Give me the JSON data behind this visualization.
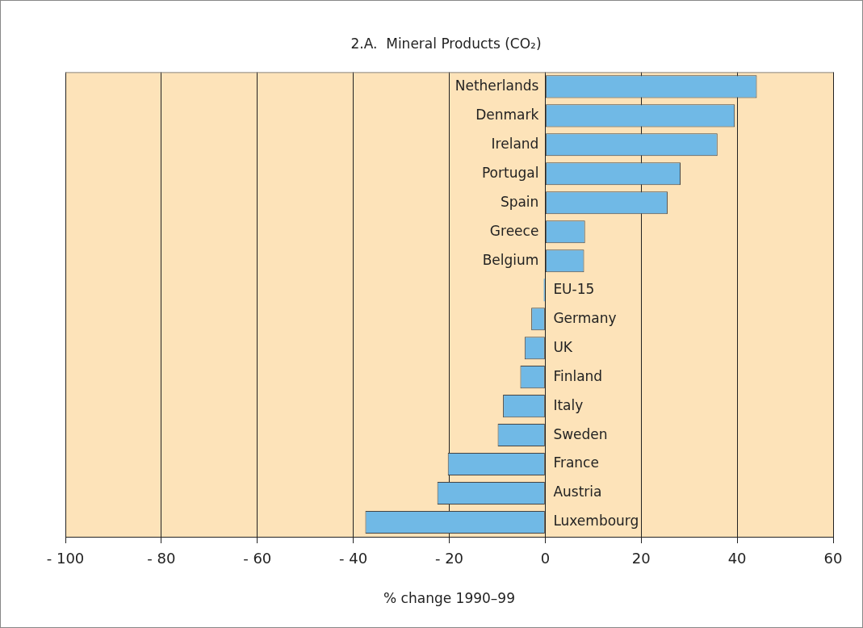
{
  "chart_data": {
    "type": "bar",
    "orientation": "horizontal",
    "title": "2.A.  Mineral Products (CO₂)",
    "xlabel": "% change 1990–99",
    "categories": [
      "Netherlands",
      "Denmark",
      "Ireland",
      "Portugal",
      "Spain",
      "Greece",
      "Belgium",
      "EU-15",
      "Germany",
      "UK",
      "Finland",
      "Italy",
      "Sweden",
      "France",
      "Austria",
      "Luxembourg"
    ],
    "values": [
      44.1,
      39.5,
      35.9,
      28.2,
      25.5,
      8.3,
      8.1,
      -0.3,
      -2.9,
      -4.3,
      -5.2,
      -8.8,
      -9.9,
      -20.3,
      -22.5,
      -37.5
    ],
    "color": "#70b9e6",
    "xlim": [
      -100,
      60
    ],
    "xticks": [
      {
        "value": -100,
        "label": "- 100"
      },
      {
        "value": -80,
        "label": "- 80"
      },
      {
        "value": -60,
        "label": "- 60"
      },
      {
        "value": -40,
        "label": "- 40"
      },
      {
        "value": -20,
        "label": "- 20"
      },
      0,
      20,
      40,
      60
    ],
    "grid": "x",
    "tick_labels": "x"
  }
}
